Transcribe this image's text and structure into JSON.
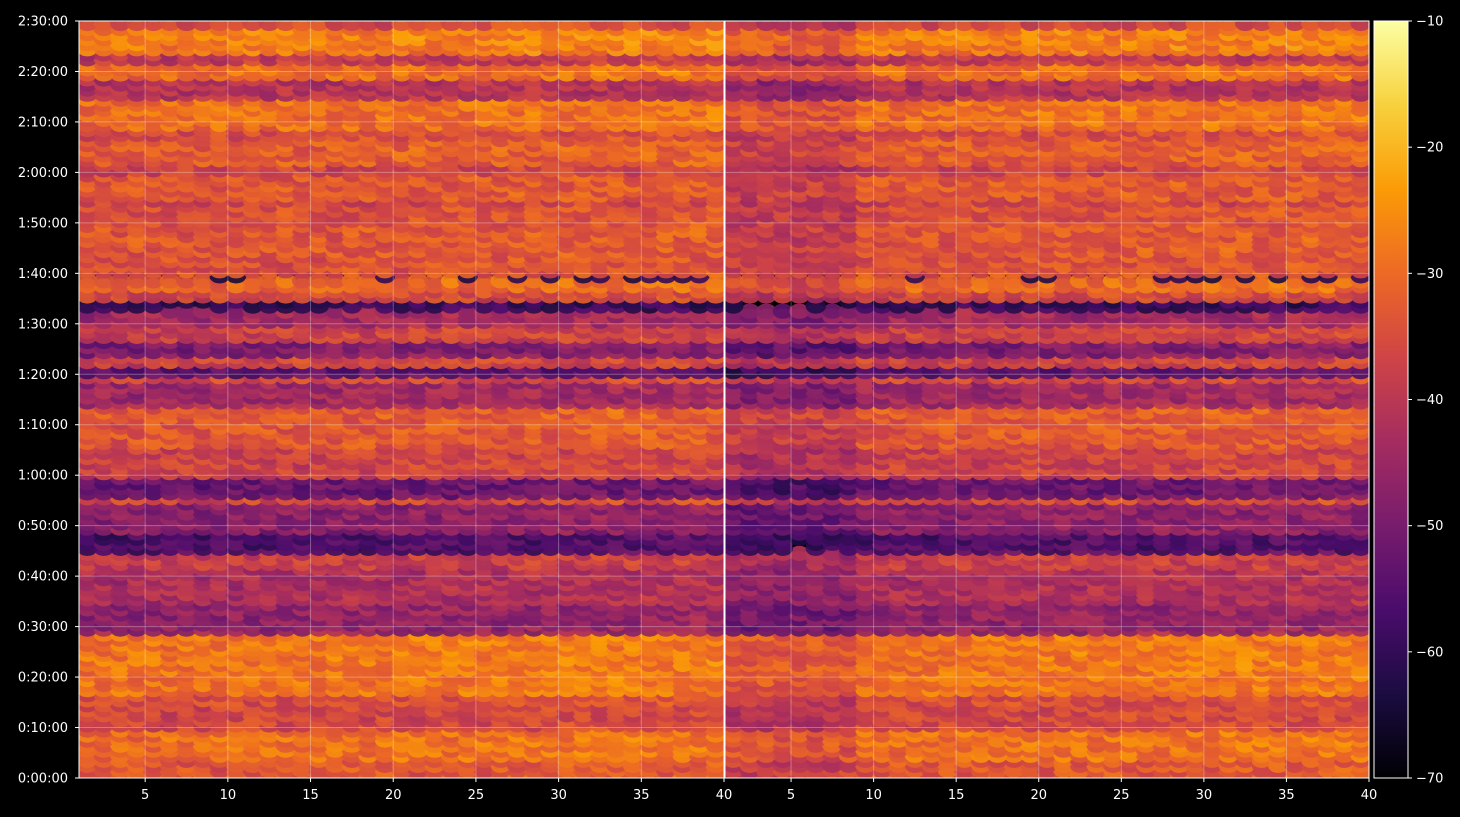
{
  "chart_data": {
    "type": "heatmap",
    "title": "",
    "xlabel": "",
    "ylabel": "",
    "background": "#000000",
    "grid": true,
    "colormap": "inferno",
    "colormap_stops": [
      "#000004",
      "#1b0c41",
      "#4a0c6b",
      "#781c6d",
      "#a52c60",
      "#cf4446",
      "#ed6925",
      "#fb9b06",
      "#f7d13d",
      "#fcffa4"
    ],
    "colorbar": {
      "range": [
        -70,
        -10
      ],
      "ticks": [
        -10,
        -20,
        -30,
        -40,
        -50,
        -60,
        -70
      ],
      "tick_labels": [
        "−10",
        "−20",
        "−30",
        "−40",
        "−50",
        "−60",
        "−70"
      ],
      "placement": "right"
    },
    "panels": [
      {
        "name": "left",
        "xlim": [
          1,
          40
        ],
        "xticks": [
          5,
          10,
          15,
          20,
          25,
          30,
          35,
          40
        ],
        "xtick_labels": [
          "5",
          "10",
          "15",
          "20",
          "25",
          "30",
          "35",
          "40"
        ]
      },
      {
        "name": "right",
        "xlim": [
          1,
          40
        ],
        "xticks": [
          5,
          10,
          15,
          20,
          25,
          30,
          35,
          40
        ],
        "xtick_labels": [
          "5",
          "10",
          "15",
          "20",
          "25",
          "30",
          "35",
          "40"
        ]
      }
    ],
    "y_axis": {
      "range_seconds": [
        0,
        9000
      ],
      "ticks_seconds": [
        0,
        600,
        1200,
        1800,
        2400,
        3000,
        3600,
        4200,
        4800,
        5400,
        6000,
        6600,
        7200,
        7800,
        8400,
        9000
      ],
      "tick_labels": [
        "0:00:00",
        "0:10:00",
        "0:20:00",
        "0:30:00",
        "0:40:00",
        "0:50:00",
        "1:00:00",
        "1:10:00",
        "1:20:00",
        "1:30:00",
        "1:40:00",
        "1:50:00",
        "2:00:00",
        "2:10:00",
        "2:20:00",
        "2:30:00"
      ]
    },
    "rows_per_panel": 150,
    "cols_per_panel": 39,
    "activity_bands": [
      {
        "y0": 0,
        "y1": 20,
        "level": -34
      },
      {
        "y0": 20,
        "y1": 55,
        "level": -30
      },
      {
        "y0": 55,
        "y1": 90,
        "level": -37
      },
      {
        "y0": 90,
        "y1": 100,
        "level": -36
      },
      {
        "y0": 100,
        "y1": 170,
        "level": -29
      },
      {
        "y0": 170,
        "y1": 210,
        "level": -47
      },
      {
        "y0": 210,
        "y1": 250,
        "level": -43
      },
      {
        "y0": 250,
        "y1": 270,
        "level": -39
      },
      {
        "y0": 270,
        "y1": 290,
        "level": -57
      },
      {
        "y0": 290,
        "y1": 325,
        "level": -48
      },
      {
        "y0": 325,
        "y1": 335,
        "level": -36
      },
      {
        "y0": 335,
        "y1": 355,
        "level": -53
      },
      {
        "y0": 355,
        "y1": 395,
        "level": -38
      },
      {
        "y0": 395,
        "y1": 430,
        "level": -34
      },
      {
        "y0": 430,
        "y1": 440,
        "level": -33
      },
      {
        "y0": 440,
        "y1": 470,
        "level": -45
      },
      {
        "y0": 470,
        "y1": 480,
        "level": -36
      },
      {
        "y0": 480,
        "y1": 490,
        "level": -55
      },
      {
        "y0": 490,
        "y1": 500,
        "level": -37
      },
      {
        "y0": 500,
        "y1": 520,
        "level": -50
      },
      {
        "y0": 520,
        "y1": 535,
        "level": -38
      },
      {
        "y0": 535,
        "y1": 555,
        "level": -45
      },
      {
        "y0": 555,
        "y1": 570,
        "level": -62
      },
      {
        "y0": 570,
        "y1": 580,
        "level": -36
      },
      {
        "y0": 580,
        "y1": 590,
        "level": -31
      },
      {
        "y0": 590,
        "y1": 600,
        "level": -66
      },
      {
        "y0": 600,
        "y1": 620,
        "level": -35
      },
      {
        "y0": 620,
        "y1": 660,
        "level": -34
      },
      {
        "y0": 660,
        "y1": 680,
        "level": -35
      },
      {
        "y0": 680,
        "y1": 690,
        "level": -38
      },
      {
        "y0": 690,
        "y1": 720,
        "level": -34
      },
      {
        "y0": 720,
        "y1": 730,
        "level": -38
      },
      {
        "y0": 730,
        "y1": 760,
        "level": -33
      },
      {
        "y0": 760,
        "y1": 770,
        "level": -36
      },
      {
        "y0": 770,
        "y1": 810,
        "level": -30
      },
      {
        "y0": 810,
        "y1": 830,
        "level": -42
      },
      {
        "y0": 830,
        "y1": 850,
        "level": -30
      },
      {
        "y0": 850,
        "y1": 860,
        "level": -40
      },
      {
        "y0": 860,
        "y1": 890,
        "level": -28
      },
      {
        "y0": 890,
        "y1": 900,
        "level": -37
      }
    ]
  }
}
